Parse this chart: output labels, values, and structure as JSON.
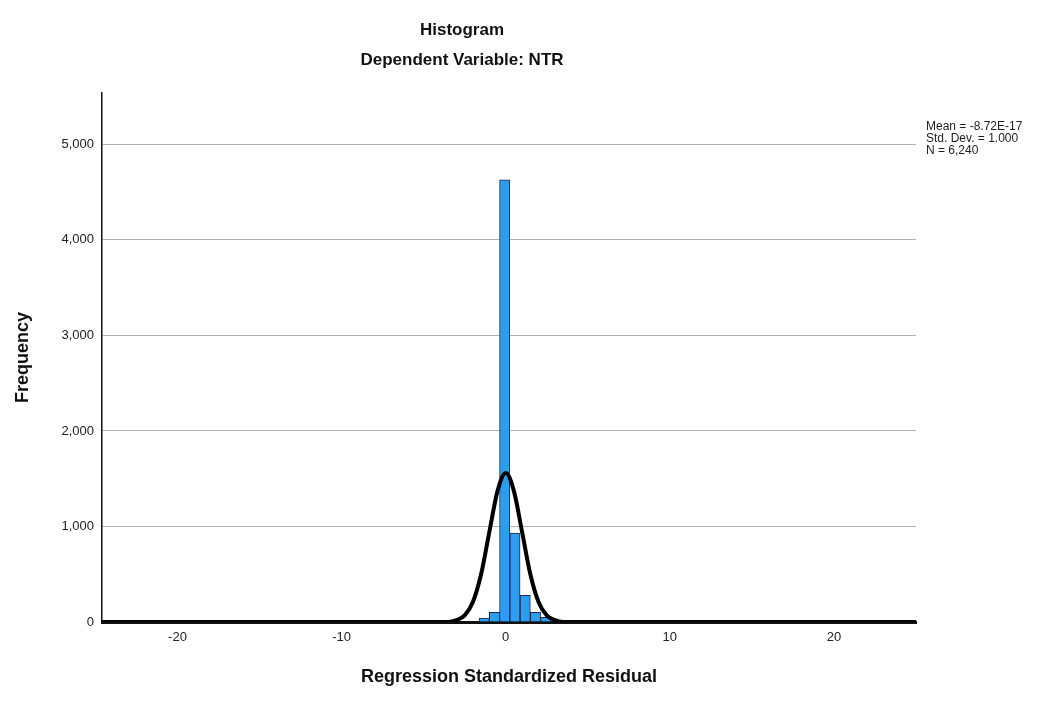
{
  "chart_data": {
    "type": "histogram",
    "title": "Histogram",
    "subtitle": "Dependent Variable: NTR",
    "xlabel": "Regression Standardized Residual",
    "ylabel": "Frequency",
    "bins": [
      -1.625,
      -1.0,
      -0.375,
      0.25,
      0.875,
      1.5,
      2.125,
      2.75
    ],
    "values": [
      40,
      100,
      4630,
      930,
      280,
      100,
      50
    ],
    "color": "#2e9df0",
    "series": [
      {
        "type": "line",
        "color": "#000000",
        "x": [
          -24.6,
          -5,
          -4,
          -3.5,
          -3,
          -2.5,
          -2,
          -1.5,
          -1,
          -0.5,
          0,
          0.5,
          1,
          1.5,
          2,
          2.5,
          3,
          3.5,
          4,
          5,
          25
        ],
        "values": [
          0,
          0,
          0,
          0,
          20,
          70,
          210,
          500,
          940,
          1370,
          1560,
          1370,
          940,
          500,
          210,
          70,
          20,
          0,
          0,
          0,
          0
        ]
      }
    ],
    "xlim": [
      -24.6,
      25
    ],
    "xticks": [
      -20,
      -10,
      0,
      10,
      20
    ],
    "ylim": [
      0,
      5540
    ],
    "yticks": [
      {
        "value": 0,
        "label": "0"
      },
      {
        "value": 1000,
        "label": "1,000"
      },
      {
        "value": 2000,
        "label": "2,000"
      },
      {
        "value": 3000,
        "label": "3,000"
      },
      {
        "value": 4000,
        "label": "4,000"
      },
      {
        "value": 5000,
        "label": "5,000"
      }
    ],
    "grid": "y",
    "legend": false,
    "marker": "none",
    "line_style": "solid",
    "annotations": [
      "Mean = -8.72E-17",
      "Std. Dev. = 1.000",
      "N = 6,240"
    ]
  }
}
